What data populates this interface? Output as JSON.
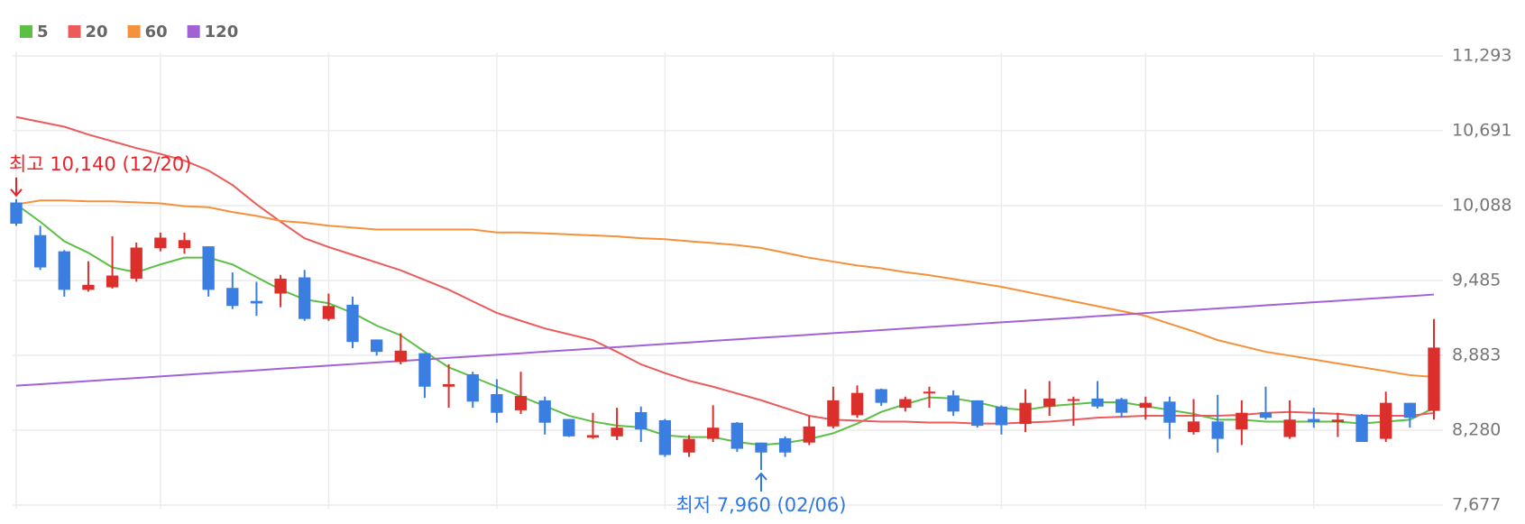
{
  "chart_data": {
    "type": "candlestick",
    "up_color": "#dc2f2b",
    "down_color": "#3a7ee2",
    "ylim": [
      7677,
      11293
    ],
    "yticks": [
      {
        "value": 7677,
        "label": "7,677"
      },
      {
        "value": 8280,
        "label": "8,280"
      },
      {
        "value": 8883,
        "label": "8,883"
      },
      {
        "value": 9485,
        "label": "9,485"
      },
      {
        "value": 10088,
        "label": "10,088"
      },
      {
        "value": 10691,
        "label": "10,691"
      },
      {
        "value": 11293,
        "label": "11,293"
      }
    ],
    "grid": true,
    "high_label": "최고 10,140 (12/20)",
    "low_label": "최저 7,960 (02/06)",
    "open": [
      10113,
      9850,
      9720,
      9410,
      9430,
      9500,
      9745,
      9745,
      9760,
      9425,
      9320,
      9380,
      9510,
      9175,
      9290,
      9010,
      8830,
      8900,
      8630,
      8730,
      8570,
      8440,
      8520,
      8370,
      8220,
      8230,
      8425,
      8360,
      8100,
      8210,
      8340,
      8180,
      8215,
      8180,
      8310,
      8400,
      8610,
      8460,
      8575,
      8560,
      8520,
      8470,
      8330,
      8470,
      8520,
      8535,
      8530,
      8460,
      8510,
      8265,
      8350,
      8285,
      8425,
      8225,
      8370,
      8345,
      8405,
      8210,
      8500,
      8435
    ],
    "high": [
      10140,
      9925,
      9730,
      9640,
      9840,
      9790,
      9870,
      9870,
      9760,
      9550,
      9475,
      9530,
      9570,
      9380,
      9355,
      9010,
      9060,
      8900,
      8810,
      8750,
      8690,
      8750,
      8550,
      8370,
      8420,
      8460,
      8470,
      8370,
      8240,
      8480,
      8345,
      8180,
      8230,
      8395,
      8630,
      8640,
      8615,
      8550,
      8630,
      8600,
      8520,
      8480,
      8610,
      8675,
      8550,
      8675,
      8540,
      8550,
      8550,
      8530,
      8565,
      8520,
      8630,
      8520,
      8460,
      8420,
      8410,
      8590,
      8500,
      9175
    ],
    "low": [
      9925,
      9570,
      9355,
      9395,
      9420,
      9475,
      9720,
      9700,
      9355,
      9255,
      9200,
      9270,
      9160,
      9160,
      8940,
      8880,
      8810,
      8540,
      8460,
      8460,
      8340,
      8410,
      8245,
      8225,
      8210,
      8200,
      8185,
      8065,
      8065,
      8185,
      8105,
      7960,
      8065,
      8160,
      8295,
      8380,
      8475,
      8430,
      8460,
      8395,
      8300,
      8245,
      8265,
      8395,
      8315,
      8455,
      8380,
      8365,
      8210,
      8245,
      8100,
      8160,
      8365,
      8210,
      8300,
      8225,
      8185,
      8185,
      8300,
      8365
    ],
    "close": [
      9942,
      9590,
      9410,
      9450,
      9525,
      9750,
      9830,
      9810,
      9410,
      9280,
      9300,
      9500,
      9175,
      9280,
      8990,
      8910,
      8920,
      8630,
      8650,
      8510,
      8420,
      8555,
      8340,
      8230,
      8240,
      8300,
      8285,
      8080,
      8210,
      8300,
      8130,
      8100,
      8100,
      8310,
      8520,
      8580,
      8500,
      8530,
      8590,
      8430,
      8315,
      8320,
      8500,
      8535,
      8530,
      8470,
      8420,
      8500,
      8340,
      8350,
      8210,
      8420,
      8380,
      8365,
      8345,
      8365,
      8185,
      8500,
      8380,
      8945
    ],
    "series": [
      {
        "name": "5",
        "color": "#5cbf46",
        "values": [
          10098,
          9958,
          9801,
          9708,
          9590,
          9551,
          9614,
          9669,
          9669,
          9614,
          9512,
          9411,
          9333,
          9302,
          9224,
          9122,
          9044,
          8911,
          8786,
          8708,
          8630,
          8552,
          8474,
          8396,
          8349,
          8317,
          8302,
          8239,
          8224,
          8224,
          8185,
          8161,
          8177,
          8208,
          8255,
          8333,
          8427,
          8489,
          8544,
          8536,
          8505,
          8458,
          8442,
          8474,
          8489,
          8505,
          8505,
          8474,
          8442,
          8411,
          8364,
          8364,
          8349,
          8349,
          8349,
          8349,
          8333,
          8349,
          8364,
          8458
        ]
      },
      {
        "name": "20",
        "color": "#ec5b5b",
        "values": [
          10801,
          10762,
          10723,
          10660,
          10606,
          10551,
          10504,
          10450,
          10371,
          10254,
          10098,
          9958,
          9825,
          9754,
          9692,
          9630,
          9567,
          9489,
          9411,
          9317,
          9224,
          9161,
          9099,
          9052,
          9005,
          8911,
          8810,
          8739,
          8677,
          8630,
          8575,
          8521,
          8458,
          8396,
          8364,
          8357,
          8349,
          8349,
          8341,
          8341,
          8333,
          8333,
          8341,
          8349,
          8364,
          8380,
          8388,
          8396,
          8396,
          8396,
          8396,
          8403,
          8419,
          8427,
          8419,
          8411,
          8396,
          8396,
          8396,
          8419
        ]
      },
      {
        "name": "60",
        "color": "#f5913a",
        "values": [
          10098,
          10129,
          10129,
          10122,
          10122,
          10114,
          10106,
          10083,
          10075,
          10036,
          10005,
          9965,
          9950,
          9926,
          9911,
          9895,
          9895,
          9895,
          9895,
          9895,
          9872,
          9872,
          9864,
          9856,
          9848,
          9840,
          9825,
          9817,
          9801,
          9786,
          9770,
          9747,
          9708,
          9668,
          9637,
          9606,
          9583,
          9552,
          9528,
          9497,
          9465,
          9434,
          9395,
          9356,
          9317,
          9278,
          9239,
          9200,
          9137,
          9075,
          9005,
          8958,
          8911,
          8880,
          8849,
          8817,
          8786,
          8755,
          8723,
          8708
        ]
      },
      {
        "name": "120",
        "color": "#a262d6",
        "values": [
          8638,
          8650,
          8663,
          8675,
          8688,
          8700,
          8713,
          8725,
          8738,
          8750,
          8762,
          8775,
          8787,
          8800,
          8812,
          8825,
          8837,
          8849,
          8862,
          8874,
          8887,
          8899,
          8912,
          8924,
          8937,
          8949,
          8961,
          8974,
          8986,
          8999,
          9011,
          9024,
          9036,
          9048,
          9061,
          9073,
          9086,
          9098,
          9111,
          9123,
          9136,
          9148,
          9160,
          9173,
          9185,
          9198,
          9210,
          9223,
          9235,
          9247,
          9260,
          9272,
          9285,
          9297,
          9310,
          9322,
          9334,
          9347,
          9359,
          9372
        ]
      }
    ]
  }
}
